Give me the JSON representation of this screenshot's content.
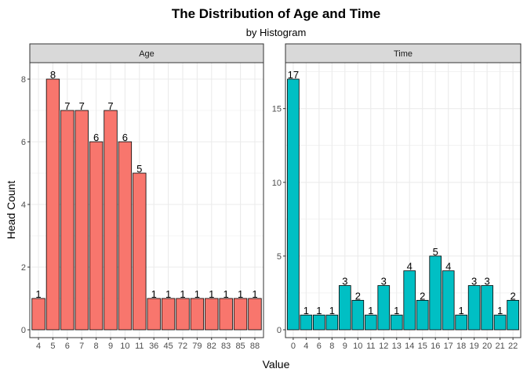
{
  "chart_data": {
    "type": "bar",
    "title": "The Distribution of Age and Time",
    "subtitle": "by Histogram",
    "xlabel": "Value",
    "ylabel": "Head Count",
    "grid": true,
    "colors": {
      "bar_border": "#000000",
      "panel_border": "#333333",
      "strip_bg": "#d9d9d9",
      "grid": "#ebebeb"
    },
    "panels": [
      {
        "name": "Age",
        "color": "#f8766d",
        "categories": [
          "4",
          "5",
          "6",
          "7",
          "8",
          "9",
          "10",
          "11",
          "36",
          "45",
          "72",
          "79",
          "82",
          "83",
          "85",
          "88"
        ],
        "values": [
          1,
          8,
          7,
          7,
          6,
          7,
          6,
          5,
          1,
          1,
          1,
          1,
          1,
          1,
          1,
          1
        ],
        "ylim": [
          0,
          8.4
        ],
        "yticks": [
          0,
          2,
          4,
          6,
          8
        ]
      },
      {
        "name": "Time",
        "color": "#00bfc4",
        "categories": [
          "0",
          "4",
          "6",
          "8",
          "9",
          "10",
          "11",
          "12",
          "13",
          "14",
          "15",
          "16",
          "17",
          "18",
          "19",
          "20",
          "21",
          "22"
        ],
        "values": [
          17,
          1,
          1,
          1,
          3,
          2,
          1,
          3,
          1,
          4,
          2,
          5,
          4,
          1,
          3,
          3,
          1,
          2
        ],
        "ylim": [
          0,
          17.85
        ],
        "yticks": [
          0,
          5,
          10,
          15
        ]
      }
    ]
  }
}
